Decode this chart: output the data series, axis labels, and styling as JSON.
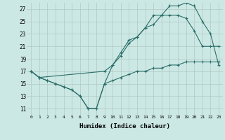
{
  "xlabel": "Humidex (Indice chaleur)",
  "bg_color": "#cce8e4",
  "grid_color": "#b0c8c4",
  "line_color": "#2a6e68",
  "xlim": [
    -0.5,
    23.5
  ],
  "ylim": [
    10.0,
    28.0
  ],
  "yticks": [
    11,
    13,
    15,
    17,
    19,
    21,
    23,
    25,
    27
  ],
  "xticks": [
    0,
    1,
    2,
    3,
    4,
    5,
    6,
    7,
    8,
    9,
    10,
    11,
    12,
    13,
    14,
    15,
    16,
    17,
    18,
    19,
    20,
    21,
    22,
    23
  ],
  "line1_x": [
    0,
    1,
    2,
    3,
    4,
    5,
    6,
    7,
    8,
    9,
    10,
    11,
    12,
    13,
    14,
    15,
    16,
    17,
    18,
    19,
    20,
    21,
    22,
    23
  ],
  "line1_y": [
    17,
    16,
    15.5,
    15,
    14.5,
    14,
    13,
    11,
    11,
    15,
    15.5,
    16,
    16.5,
    17,
    17,
    17.5,
    17.5,
    18,
    18,
    18.5,
    18.5,
    18.5,
    18.5,
    18.5
  ],
  "line2_x": [
    0,
    1,
    2,
    3,
    4,
    5,
    6,
    7,
    8,
    9,
    10,
    11,
    12,
    13,
    14,
    15,
    16,
    17,
    18,
    19,
    20,
    21,
    22,
    23
  ],
  "line2_y": [
    17,
    16,
    15.5,
    15,
    14.5,
    14,
    13,
    11,
    11,
    15,
    18,
    20,
    22,
    22.5,
    24,
    24.5,
    26,
    26,
    26,
    25.5,
    23.5,
    21,
    21,
    21
  ],
  "line3_x": [
    0,
    1,
    9,
    10,
    11,
    12,
    13,
    14,
    15,
    16,
    17,
    18,
    19,
    20,
    21,
    22,
    23
  ],
  "line3_y": [
    17,
    16,
    17,
    18,
    19.5,
    21.5,
    22.5,
    24,
    26,
    26,
    27.5,
    27.5,
    28,
    27.5,
    25,
    23,
    18
  ]
}
